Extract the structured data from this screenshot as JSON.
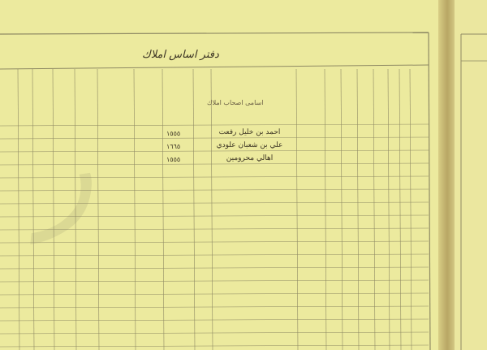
{
  "document": {
    "title": "دفتر اساس املاك",
    "column_header": "اسامی اصحاب املاك",
    "rows": [
      {
        "name": "احمد بن خليل رفعت",
        "value": "١٥٥٥"
      },
      {
        "name": "علي بن شعبان علودي",
        "value": "١٦٦٥"
      },
      {
        "name": "اهالي محرومين",
        "value": "١٥٥٥"
      }
    ],
    "colors": {
      "paper": "#ecea9e",
      "ink": "#3a3222",
      "rule": "#8f8a64"
    }
  }
}
